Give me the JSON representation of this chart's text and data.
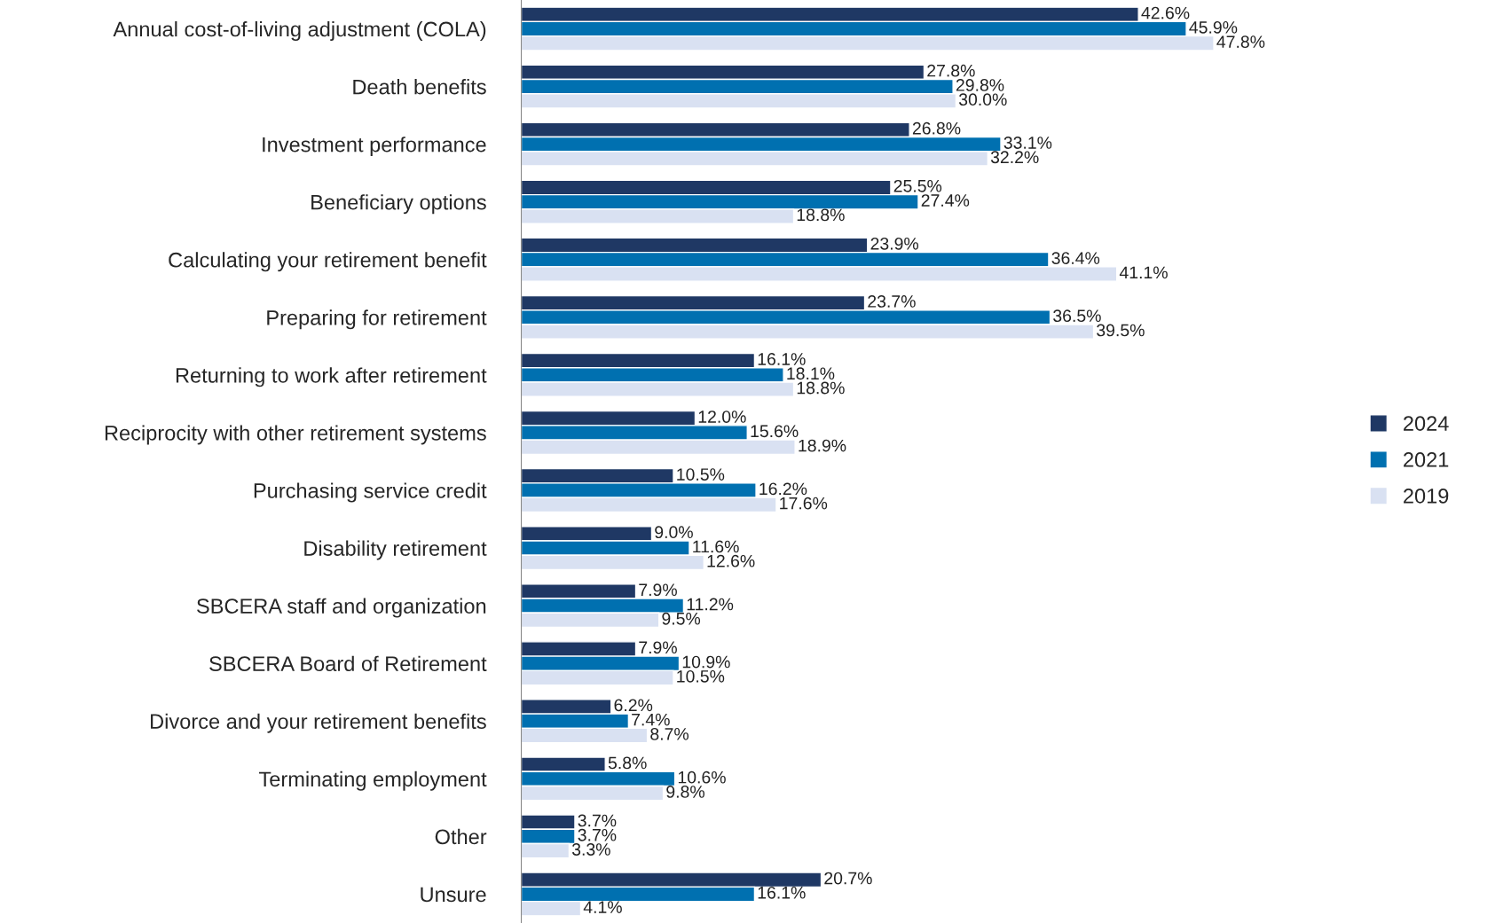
{
  "chart_data": {
    "type": "bar",
    "orientation": "horizontal",
    "legend": "right",
    "grid": false,
    "categories": [
      "Annual cost-of-living adjustment (COLA)",
      "Death benefits",
      "Investment performance",
      "Beneficiary options",
      "Calculating your retirement benefit",
      "Preparing for retirement",
      "Returning to work after retirement",
      "Reciprocity with other retirement systems",
      "Purchasing service credit",
      "Disability retirement",
      "SBCERA staff and organization",
      "SBCERA Board of Retirement",
      "Divorce and your retirement benefits",
      "Terminating employment",
      "Other",
      "Unsure"
    ],
    "series": [
      {
        "name": "2024",
        "color": "#1f3864",
        "values": [
          42.6,
          27.8,
          26.8,
          25.5,
          23.9,
          23.7,
          16.1,
          12.0,
          10.5,
          9.0,
          7.9,
          7.9,
          6.2,
          5.8,
          3.7,
          20.7
        ],
        "value_labels": [
          "42.6%",
          "27.8%",
          "26.8%",
          "25.5%",
          "23.9%",
          "23.7%",
          "16.1%",
          "12.0%",
          "10.5%",
          "9.0%",
          "7.9%",
          "7.9%",
          "6.2%",
          "5.8%",
          "3.7%",
          "20.7%"
        ]
      },
      {
        "name": "2021",
        "color": "#0070b0",
        "values": [
          45.9,
          29.8,
          33.1,
          27.4,
          36.4,
          36.5,
          18.1,
          15.6,
          16.2,
          11.6,
          11.2,
          10.9,
          7.4,
          10.6,
          3.7,
          16.1
        ],
        "value_labels": [
          "45.9%",
          "29.8%",
          "33.1%",
          "27.4%",
          "36.4%",
          "36.5%",
          "18.1%",
          "15.6%",
          "16.2%",
          "11.6%",
          "11.2%",
          "10.9%",
          "7.4%",
          "10.6%",
          "3.7%",
          "16.1%"
        ]
      },
      {
        "name": "2019",
        "color": "#d9e1f2",
        "values": [
          47.8,
          30.0,
          32.2,
          18.8,
          41.1,
          39.5,
          18.8,
          18.9,
          17.6,
          12.6,
          9.5,
          10.5,
          8.7,
          9.8,
          3.3,
          4.1
        ],
        "value_labels": [
          "47.8%",
          "30.0%",
          "32.2%",
          "18.8%",
          "41.1%",
          "39.5%",
          "18.8%",
          "18.9%",
          "17.6%",
          "12.6%",
          "9.5%",
          "10.5%",
          "8.7%",
          "9.8%",
          "3.3%",
          "4.1%"
        ]
      }
    ]
  }
}
